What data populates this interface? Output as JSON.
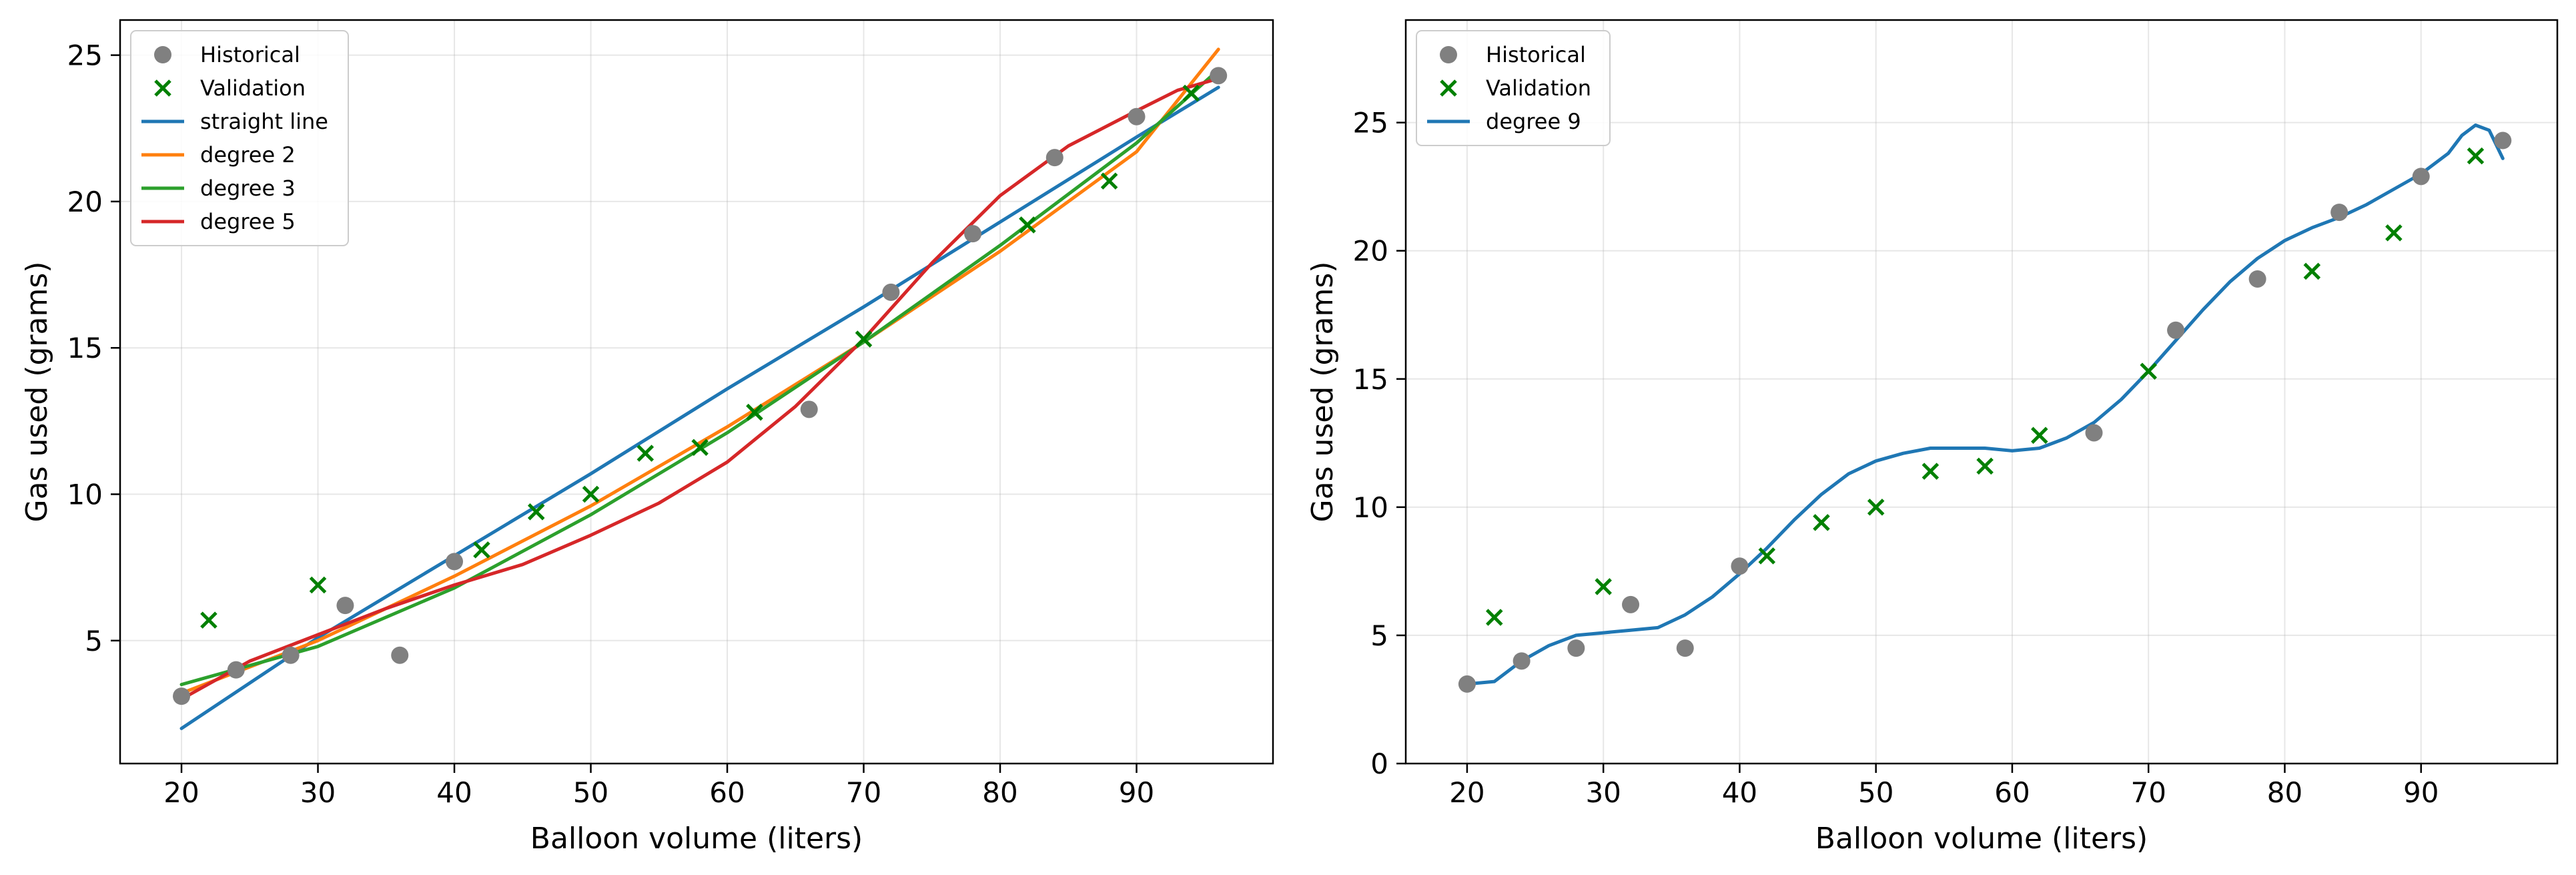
{
  "chart_data": [
    {
      "type": "scatter",
      "xlabel": "Balloon volume (liters)",
      "ylabel": "Gas used (grams)",
      "xlim": [
        15.5,
        100
      ],
      "ylim": [
        0.8,
        26.2
      ],
      "xticks": [
        20,
        30,
        40,
        50,
        60,
        70,
        80,
        90
      ],
      "yticks": [
        5,
        10,
        15,
        20,
        25
      ],
      "grid": true,
      "legend_position": "top-left",
      "series": [
        {
          "name": "Historical",
          "kind": "points",
          "marker": "circle",
          "color": "#808080",
          "x": [
            20,
            24,
            28,
            32,
            36,
            40,
            66,
            72,
            78,
            84,
            90,
            96
          ],
          "y": [
            3.1,
            4.0,
            4.5,
            6.2,
            4.5,
            7.7,
            12.9,
            16.9,
            18.9,
            21.5,
            22.9,
            24.3
          ]
        },
        {
          "name": "Validation",
          "kind": "points",
          "marker": "x",
          "color": "#008000",
          "x": [
            22,
            30,
            42,
            46,
            50,
            54,
            58,
            62,
            70,
            82,
            88,
            94
          ],
          "y": [
            5.7,
            6.9,
            8.1,
            9.4,
            10.0,
            11.4,
            11.6,
            12.8,
            15.3,
            19.2,
            20.7,
            23.7
          ]
        },
        {
          "name": "straight line",
          "kind": "line",
          "color": "#1f77b4",
          "x": [
            20,
            30,
            40,
            50,
            60,
            70,
            80,
            90,
            96
          ],
          "y": [
            2.0,
            5.1,
            7.9,
            10.7,
            13.6,
            16.4,
            19.3,
            22.2,
            23.9
          ]
        },
        {
          "name": "degree 2",
          "kind": "line",
          "color": "#ff7f0e",
          "x": [
            20,
            30,
            40,
            50,
            60,
            70,
            80,
            90,
            96
          ],
          "y": [
            3.2,
            5.0,
            7.2,
            9.6,
            12.3,
            15.2,
            18.3,
            21.7,
            25.2
          ]
        },
        {
          "name": "degree 3",
          "kind": "line",
          "color": "#2ca02c",
          "x": [
            20,
            30,
            40,
            50,
            60,
            70,
            80,
            90,
            96
          ],
          "y": [
            3.5,
            4.8,
            6.8,
            9.3,
            12.1,
            15.2,
            18.5,
            22.0,
            24.5
          ]
        },
        {
          "name": "degree 5",
          "kind": "line",
          "color": "#d62728",
          "x": [
            20,
            25,
            30,
            35,
            40,
            45,
            50,
            55,
            60,
            65,
            70,
            75,
            80,
            85,
            90,
            93,
            96
          ],
          "y": [
            3.0,
            4.3,
            5.2,
            6.1,
            6.9,
            7.6,
            8.6,
            9.7,
            11.1,
            13.0,
            15.3,
            17.9,
            20.2,
            21.9,
            23.1,
            23.8,
            24.2
          ]
        }
      ]
    },
    {
      "type": "scatter",
      "xlabel": "Balloon volume (liters)",
      "ylabel": "Gas used (grams)",
      "xlim": [
        15.5,
        100
      ],
      "ylim": [
        0,
        29
      ],
      "xticks": [
        20,
        30,
        40,
        50,
        60,
        70,
        80,
        90
      ],
      "yticks": [
        0,
        5,
        10,
        15,
        20,
        25
      ],
      "grid": true,
      "legend_position": "top-left",
      "series": [
        {
          "name": "Historical",
          "kind": "points",
          "marker": "circle",
          "color": "#808080",
          "x": [
            20,
            24,
            28,
            32,
            36,
            40,
            66,
            72,
            78,
            84,
            90,
            96
          ],
          "y": [
            3.1,
            4.0,
            4.5,
            6.2,
            4.5,
            7.7,
            12.9,
            16.9,
            18.9,
            21.5,
            22.9,
            24.3
          ]
        },
        {
          "name": "Validation",
          "kind": "points",
          "marker": "x",
          "color": "#008000",
          "x": [
            22,
            30,
            42,
            46,
            50,
            54,
            58,
            62,
            70,
            82,
            88,
            94
          ],
          "y": [
            5.7,
            6.9,
            8.1,
            9.4,
            10.0,
            11.4,
            11.6,
            12.8,
            15.3,
            19.2,
            20.7,
            23.7
          ]
        },
        {
          "name": "degree 9",
          "kind": "line",
          "color": "#1f77b4",
          "x": [
            20,
            22,
            24,
            26,
            28,
            30,
            32,
            34,
            36,
            38,
            40,
            42,
            44,
            46,
            48,
            50,
            52,
            54,
            56,
            58,
            60,
            62,
            64,
            66,
            68,
            70,
            72,
            74,
            76,
            78,
            80,
            82,
            84,
            86,
            88,
            90,
            92,
            93,
            94,
            95,
            96
          ],
          "y": [
            3.1,
            3.2,
            4.0,
            4.6,
            5.0,
            5.1,
            5.2,
            5.3,
            5.8,
            6.5,
            7.4,
            8.4,
            9.5,
            10.5,
            11.3,
            11.8,
            12.1,
            12.3,
            12.3,
            12.3,
            12.2,
            12.3,
            12.7,
            13.3,
            14.2,
            15.3,
            16.5,
            17.7,
            18.8,
            19.7,
            20.4,
            20.9,
            21.3,
            21.8,
            22.4,
            23.0,
            23.8,
            24.5,
            24.9,
            24.7,
            23.6
          ]
        }
      ]
    }
  ]
}
